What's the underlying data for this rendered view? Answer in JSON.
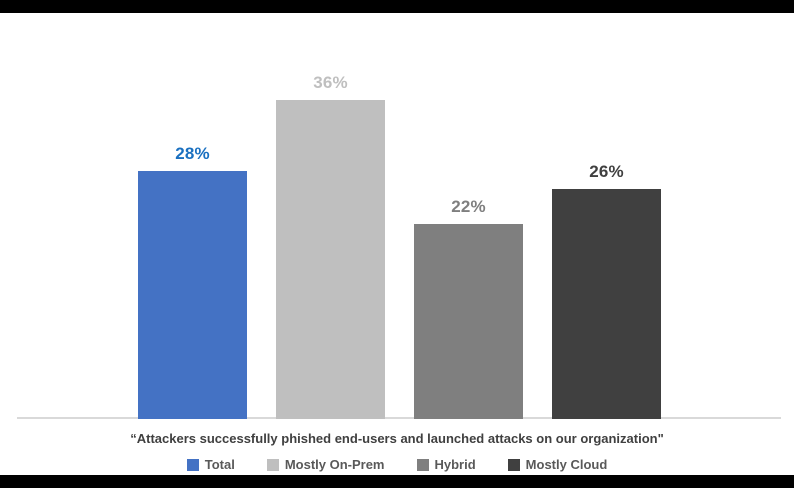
{
  "chart_data": {
    "type": "bar",
    "categories": [
      "Total",
      "Mostly On-Prem",
      "Hybrid",
      "Mostly Cloud"
    ],
    "values": [
      28,
      36,
      22,
      26
    ],
    "data_labels": [
      "28%",
      "36%",
      "22%",
      "26%"
    ],
    "bar_colors": [
      "#4472C4",
      "#BFBFBF",
      "#7F7F7F",
      "#404040"
    ],
    "data_label_colors": [
      "#1A70C0",
      "#BFBFBF",
      "#7F7F7F",
      "#404040"
    ],
    "title": "",
    "xlabel": "“Attackers successfully phished end-users and launched attacks on our organization\"",
    "ylabel": "",
    "ylim": [
      0,
      40
    ],
    "grid": false,
    "y_axis_visible": false,
    "x_axis_line_color": "#D9D9D9",
    "legend_position": "bottom",
    "legend": [
      {
        "label": "Total",
        "color": "#4472C4"
      },
      {
        "label": "Mostly On-Prem",
        "color": "#BFBFBF"
      },
      {
        "label": "Hybrid",
        "color": "#7F7F7F"
      },
      {
        "label": "Mostly Cloud",
        "color": "#404040"
      }
    ]
  },
  "caption": "“Attackers successfully phished end-users and launched attacks on our organization\"",
  "layout_colors": {
    "background": "#FFFFFF",
    "top_band": "#000000",
    "bottom_band": "#000000",
    "caption_text": "#404040",
    "legend_text": "#595959"
  }
}
